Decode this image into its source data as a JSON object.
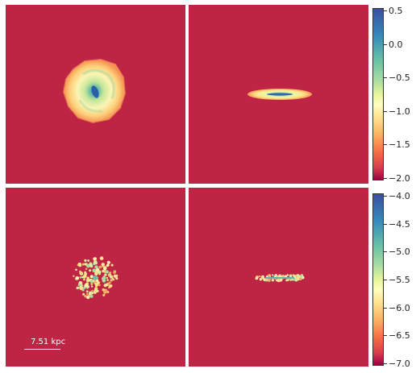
{
  "colorbars": [
    {
      "ticks": [
        "0.5",
        "0.0",
        "−0.5",
        "−1.0",
        "−1.5",
        "−2.0"
      ],
      "range": [
        -2.0,
        0.5
      ]
    },
    {
      "ticks": [
        "−4.0",
        "−4.5",
        "−5.0",
        "−5.5",
        "−6.0",
        "−6.5",
        "−7.0"
      ],
      "range": [
        -7.0,
        -4.0
      ]
    }
  ],
  "scale_bar": {
    "label": "7.51 kpc"
  },
  "colors": {
    "background": "#be2444",
    "colormap": [
      "#9e0142",
      "#d53e4f",
      "#f46d43",
      "#fdae61",
      "#fee08b",
      "#ffffbf",
      "#e6f598",
      "#abdda4",
      "#66c2a5",
      "#3288bd",
      "#5e4fa2"
    ]
  }
}
